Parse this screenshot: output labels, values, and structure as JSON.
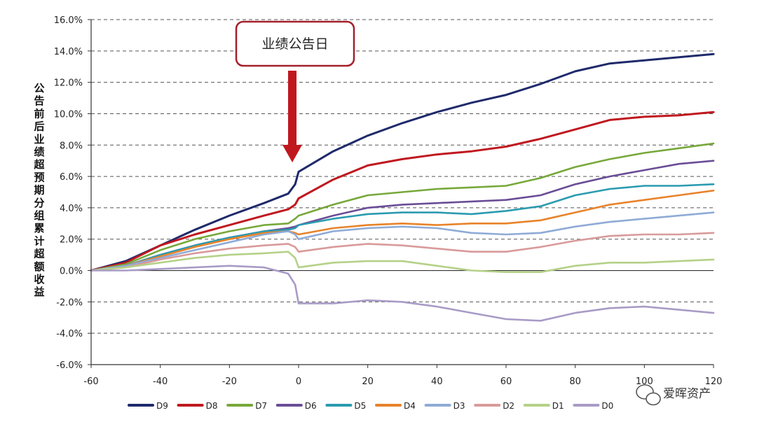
{
  "chart_data": {
    "type": "line",
    "ylabel": "公告前后业绩超预期分组累计超额收益",
    "xlim": [
      -60,
      120
    ],
    "ylim": [
      -6.0,
      16.0
    ],
    "xticks": [
      -60,
      -40,
      -20,
      0,
      20,
      40,
      60,
      80,
      100,
      120
    ],
    "yticks": [
      -6.0,
      -4.0,
      -2.0,
      0.0,
      2.0,
      4.0,
      6.0,
      8.0,
      10.0,
      12.0,
      14.0,
      16.0
    ],
    "ytick_labels": [
      "-6.0%",
      "-4.0%",
      "-2.0%",
      "0.0%",
      "2.0%",
      "4.0%",
      "6.0%",
      "8.0%",
      "10.0%",
      "12.0%",
      "14.0%",
      "16.0%"
    ],
    "grid": "horizontal-dashed",
    "legend_position": "bottom",
    "annotation": {
      "text": "业绩公告日",
      "x": 0
    },
    "series": [
      {
        "name": "D9",
        "color": "#1f2a6b",
        "points": [
          [
            -60,
            0
          ],
          [
            -50,
            0.6
          ],
          [
            -40,
            1.6
          ],
          [
            -30,
            2.6
          ],
          [
            -20,
            3.5
          ],
          [
            -10,
            4.3
          ],
          [
            -3,
            4.9
          ],
          [
            -1,
            5.5
          ],
          [
            0,
            6.3
          ],
          [
            10,
            7.6
          ],
          [
            20,
            8.6
          ],
          [
            30,
            9.4
          ],
          [
            40,
            10.1
          ],
          [
            50,
            10.7
          ],
          [
            60,
            11.2
          ],
          [
            70,
            11.9
          ],
          [
            80,
            12.7
          ],
          [
            90,
            13.2
          ],
          [
            100,
            13.4
          ],
          [
            110,
            13.6
          ],
          [
            120,
            13.8
          ]
        ]
      },
      {
        "name": "D8",
        "color": "#c0181f",
        "points": [
          [
            -60,
            0
          ],
          [
            -50,
            0.5
          ],
          [
            -40,
            1.6
          ],
          [
            -30,
            2.3
          ],
          [
            -20,
            2.9
          ],
          [
            -10,
            3.5
          ],
          [
            -3,
            3.9
          ],
          [
            -1,
            4.2
          ],
          [
            0,
            4.6
          ],
          [
            10,
            5.8
          ],
          [
            20,
            6.7
          ],
          [
            30,
            7.1
          ],
          [
            40,
            7.4
          ],
          [
            50,
            7.6
          ],
          [
            60,
            7.9
          ],
          [
            70,
            8.4
          ],
          [
            80,
            9.0
          ],
          [
            90,
            9.6
          ],
          [
            100,
            9.8
          ],
          [
            110,
            9.9
          ],
          [
            120,
            10.1
          ]
        ]
      },
      {
        "name": "D7",
        "color": "#77a83a",
        "points": [
          [
            -60,
            0
          ],
          [
            -50,
            0.4
          ],
          [
            -40,
            1.3
          ],
          [
            -30,
            2.0
          ],
          [
            -20,
            2.5
          ],
          [
            -10,
            2.9
          ],
          [
            -3,
            3.0
          ],
          [
            -1,
            3.3
          ],
          [
            0,
            3.5
          ],
          [
            10,
            4.2
          ],
          [
            20,
            4.8
          ],
          [
            30,
            5.0
          ],
          [
            40,
            5.2
          ],
          [
            50,
            5.3
          ],
          [
            60,
            5.4
          ],
          [
            70,
            5.9
          ],
          [
            80,
            6.6
          ],
          [
            90,
            7.1
          ],
          [
            100,
            7.5
          ],
          [
            110,
            7.8
          ],
          [
            120,
            8.1
          ]
        ]
      },
      {
        "name": "D6",
        "color": "#6a4d96",
        "points": [
          [
            -60,
            0
          ],
          [
            -50,
            0.3
          ],
          [
            -40,
            1.0
          ],
          [
            -30,
            1.6
          ],
          [
            -20,
            2.1
          ],
          [
            -10,
            2.5
          ],
          [
            -3,
            2.7
          ],
          [
            -1,
            2.8
          ],
          [
            0,
            2.9
          ],
          [
            10,
            3.5
          ],
          [
            20,
            4.0
          ],
          [
            30,
            4.2
          ],
          [
            40,
            4.3
          ],
          [
            50,
            4.4
          ],
          [
            60,
            4.5
          ],
          [
            70,
            4.8
          ],
          [
            80,
            5.5
          ],
          [
            90,
            6.0
          ],
          [
            100,
            6.4
          ],
          [
            110,
            6.8
          ],
          [
            120,
            7.0
          ]
        ]
      },
      {
        "name": "D5",
        "color": "#2a9bb0",
        "points": [
          [
            -60,
            0
          ],
          [
            -50,
            0.3
          ],
          [
            -40,
            1.0
          ],
          [
            -30,
            1.6
          ],
          [
            -20,
            2.1
          ],
          [
            -10,
            2.5
          ],
          [
            -3,
            2.6
          ],
          [
            -1,
            2.7
          ],
          [
            0,
            2.9
          ],
          [
            10,
            3.3
          ],
          [
            20,
            3.6
          ],
          [
            30,
            3.7
          ],
          [
            40,
            3.7
          ],
          [
            50,
            3.6
          ],
          [
            60,
            3.8
          ],
          [
            70,
            4.1
          ],
          [
            80,
            4.8
          ],
          [
            90,
            5.2
          ],
          [
            100,
            5.4
          ],
          [
            110,
            5.4
          ],
          [
            120,
            5.5
          ]
        ]
      },
      {
        "name": "D4",
        "color": "#e8832a",
        "points": [
          [
            -60,
            0
          ],
          [
            -50,
            0.3
          ],
          [
            -40,
            0.9
          ],
          [
            -30,
            1.5
          ],
          [
            -20,
            2.0
          ],
          [
            -10,
            2.4
          ],
          [
            -3,
            2.5
          ],
          [
            -1,
            2.4
          ],
          [
            0,
            2.3
          ],
          [
            10,
            2.7
          ],
          [
            20,
            2.9
          ],
          [
            30,
            3.0
          ],
          [
            40,
            2.9
          ],
          [
            50,
            3.0
          ],
          [
            60,
            3.0
          ],
          [
            70,
            3.2
          ],
          [
            80,
            3.7
          ],
          [
            90,
            4.2
          ],
          [
            100,
            4.5
          ],
          [
            110,
            4.8
          ],
          [
            120,
            5.1
          ]
        ]
      },
      {
        "name": "D3",
        "color": "#8fabd6",
        "points": [
          [
            -60,
            0
          ],
          [
            -50,
            0.3
          ],
          [
            -40,
            0.8
          ],
          [
            -30,
            1.3
          ],
          [
            -20,
            1.8
          ],
          [
            -10,
            2.3
          ],
          [
            -3,
            2.5
          ],
          [
            -1,
            2.3
          ],
          [
            0,
            2.0
          ],
          [
            10,
            2.5
          ],
          [
            20,
            2.7
          ],
          [
            30,
            2.8
          ],
          [
            40,
            2.7
          ],
          [
            50,
            2.4
          ],
          [
            60,
            2.3
          ],
          [
            70,
            2.4
          ],
          [
            80,
            2.8
          ],
          [
            90,
            3.1
          ],
          [
            100,
            3.3
          ],
          [
            110,
            3.5
          ],
          [
            120,
            3.7
          ]
        ]
      },
      {
        "name": "D2",
        "color": "#d99a9a",
        "points": [
          [
            -60,
            0
          ],
          [
            -50,
            0.2
          ],
          [
            -40,
            0.7
          ],
          [
            -30,
            1.1
          ],
          [
            -20,
            1.4
          ],
          [
            -10,
            1.6
          ],
          [
            -3,
            1.7
          ],
          [
            -1,
            1.5
          ],
          [
            0,
            1.2
          ],
          [
            10,
            1.5
          ],
          [
            20,
            1.7
          ],
          [
            30,
            1.6
          ],
          [
            40,
            1.4
          ],
          [
            50,
            1.2
          ],
          [
            60,
            1.2
          ],
          [
            70,
            1.5
          ],
          [
            80,
            1.9
          ],
          [
            90,
            2.2
          ],
          [
            100,
            2.3
          ],
          [
            110,
            2.3
          ],
          [
            120,
            2.4
          ]
        ]
      },
      {
        "name": "D1",
        "color": "#b5d188",
        "points": [
          [
            -60,
            0
          ],
          [
            -50,
            0.2
          ],
          [
            -40,
            0.5
          ],
          [
            -30,
            0.8
          ],
          [
            -20,
            1.0
          ],
          [
            -10,
            1.1
          ],
          [
            -3,
            1.2
          ],
          [
            -1,
            0.8
          ],
          [
            0,
            0.2
          ],
          [
            10,
            0.5
          ],
          [
            20,
            0.6
          ],
          [
            30,
            0.6
          ],
          [
            40,
            0.3
          ],
          [
            50,
            0.0
          ],
          [
            60,
            -0.1
          ],
          [
            70,
            -0.1
          ],
          [
            80,
            0.3
          ],
          [
            90,
            0.5
          ],
          [
            100,
            0.5
          ],
          [
            110,
            0.6
          ],
          [
            120,
            0.7
          ]
        ]
      },
      {
        "name": "D0",
        "color": "#a99bc6",
        "points": [
          [
            -60,
            0
          ],
          [
            -50,
            0.0
          ],
          [
            -40,
            0.1
          ],
          [
            -30,
            0.2
          ],
          [
            -20,
            0.3
          ],
          [
            -10,
            0.2
          ],
          [
            -3,
            -0.2
          ],
          [
            -1,
            -0.9
          ],
          [
            0,
            -2.1
          ],
          [
            10,
            -2.1
          ],
          [
            20,
            -1.9
          ],
          [
            30,
            -2.0
          ],
          [
            40,
            -2.3
          ],
          [
            50,
            -2.7
          ],
          [
            60,
            -3.1
          ],
          [
            70,
            -3.2
          ],
          [
            80,
            -2.7
          ],
          [
            90,
            -2.4
          ],
          [
            100,
            -2.3
          ],
          [
            110,
            -2.5
          ],
          [
            120,
            -2.7
          ]
        ]
      }
    ]
  },
  "watermark": {
    "text": "爱晖资产",
    "icon": "wechat-icon"
  }
}
